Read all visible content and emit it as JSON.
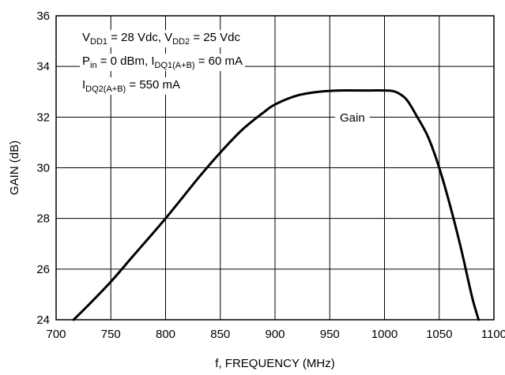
{
  "chart_data": {
    "type": "line",
    "xlabel": "f, FREQUENCY (MHz)",
    "ylabel": "GAIN (dB)",
    "xlim": [
      700,
      1100
    ],
    "ylim": [
      24,
      36
    ],
    "x_ticks": [
      "700",
      "750",
      "800",
      "850",
      "900",
      "950",
      "1000",
      "1050",
      "1100"
    ],
    "y_ticks": [
      "24",
      "26",
      "28",
      "30",
      "32",
      "34",
      "36"
    ],
    "grid": true,
    "series": [
      {
        "name": "Gain",
        "x": [
          716,
          730,
          750,
          770,
          800,
          830,
          850,
          870,
          890,
          900,
          920,
          940,
          960,
          980,
          1000,
          1010,
          1020,
          1030,
          1040,
          1050,
          1060,
          1070,
          1080,
          1086
        ],
        "y": [
          24.0,
          24.6,
          25.5,
          26.5,
          28.0,
          29.6,
          30.6,
          31.5,
          32.2,
          32.5,
          32.85,
          33.0,
          33.05,
          33.05,
          33.05,
          33.0,
          32.7,
          32.0,
          31.2,
          30.0,
          28.5,
          26.8,
          24.9,
          24.0
        ]
      }
    ],
    "annotations": {
      "curve_label": "Gain",
      "conditions": [
        [
          {
            "t": "V"
          },
          {
            "t": "DD1",
            "sub": true
          },
          {
            "t": " = 28 Vdc, V"
          },
          {
            "t": "DD2",
            "sub": true
          },
          {
            "t": " = 25 Vdc"
          }
        ],
        [
          {
            "t": "P"
          },
          {
            "t": "in",
            "sub": true
          },
          {
            "t": " = 0 dBm, I"
          },
          {
            "t": "DQ1(A+B)",
            "sub": true
          },
          {
            "t": " = 60 mA"
          }
        ],
        [
          {
            "t": "I"
          },
          {
            "t": "DQ2(A+B)",
            "sub": true
          },
          {
            "t": " = 550 mA"
          }
        ]
      ]
    }
  }
}
